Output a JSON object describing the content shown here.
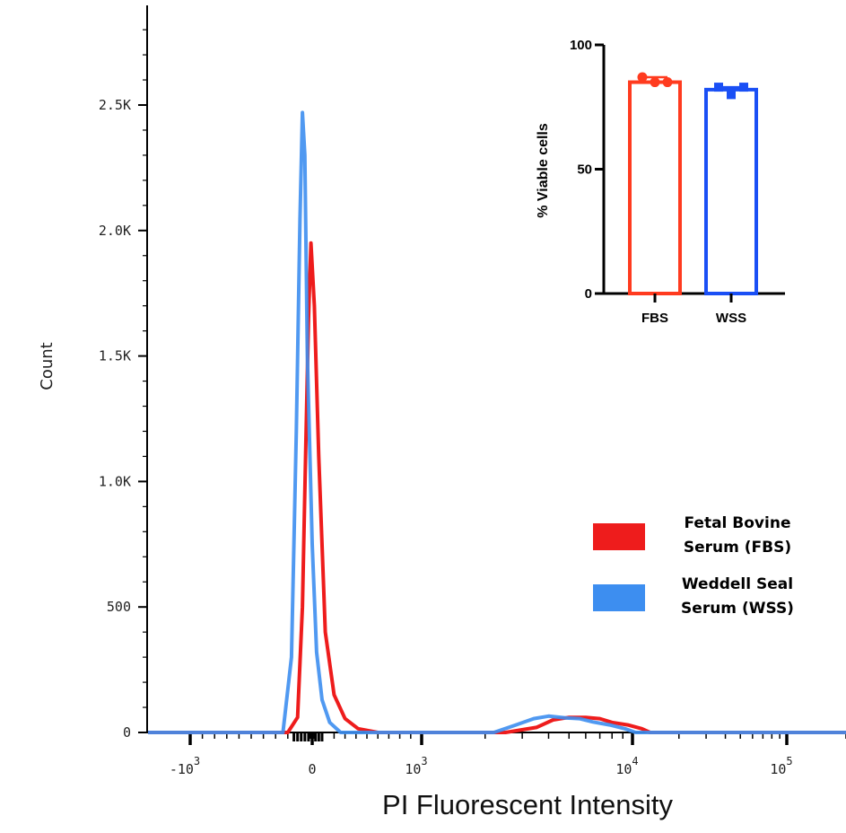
{
  "colors": {
    "fbs": "#ee1c1c",
    "wss": "#3d8ef0",
    "inset_fbs": "#ff3b1f",
    "inset_wss": "#1a4ff5",
    "axis": "#000000"
  },
  "chart_data": [
    {
      "type": "line",
      "title": "",
      "xlabel": "PI Fluorescent Intensity",
      "ylabel": "Count",
      "x_scale": "biexponential",
      "xlim": [
        -2000,
        200000
      ],
      "ylim": [
        0,
        2850
      ],
      "x_ticks": [
        {
          "value": -1000,
          "base": "-10",
          "exp": "3"
        },
        {
          "value": 0,
          "base": "0",
          "exp": ""
        },
        {
          "value": 1000,
          "base": "10",
          "exp": "3"
        },
        {
          "value": 10000,
          "base": "10",
          "exp": "4"
        },
        {
          "value": 100000,
          "base": "10",
          "exp": "5"
        }
      ],
      "y_ticks": [
        {
          "value": 0,
          "label": "0"
        },
        {
          "value": 500,
          "label": "500"
        },
        {
          "value": 1000,
          "label": "1.0K"
        },
        {
          "value": 1500,
          "label": "1.5K"
        },
        {
          "value": 2000,
          "label": "2.0K"
        },
        {
          "value": 2500,
          "label": "2.5K"
        }
      ],
      "legend_position": "right",
      "series": [
        {
          "key": "fbs",
          "legend_line1": "Fetal Bovine",
          "legend_line2": "Serum (FBS)",
          "points": [
            [
              -2000,
              0
            ],
            [
              -200,
              0
            ],
            [
              -120,
              60
            ],
            [
              -80,
              500
            ],
            [
              -50,
              1200
            ],
            [
              -30,
              1650
            ],
            [
              -10,
              1950
            ],
            [
              20,
              1700
            ],
            [
              60,
              1100
            ],
            [
              120,
              400
            ],
            [
              200,
              150
            ],
            [
              300,
              55
            ],
            [
              420,
              15
            ],
            [
              600,
              0
            ],
            [
              2500,
              0
            ],
            [
              3500,
              20
            ],
            [
              4200,
              50
            ],
            [
              5000,
              60
            ],
            [
              6000,
              60
            ],
            [
              7000,
              55
            ],
            [
              8000,
              40
            ],
            [
              9500,
              30
            ],
            [
              11500,
              15
            ],
            [
              13000,
              0
            ],
            [
              200000,
              0
            ]
          ]
        },
        {
          "key": "wss",
          "legend_line1": "Weddell Seal",
          "legend_line2": "Serum (WSS)",
          "points": [
            [
              -2000,
              0
            ],
            [
              -240,
              0
            ],
            [
              -170,
              300
            ],
            [
              -130,
              1200
            ],
            [
              -100,
              2050
            ],
            [
              -80,
              2470
            ],
            [
              -60,
              2300
            ],
            [
              -40,
              1500
            ],
            [
              0,
              750
            ],
            [
              40,
              320
            ],
            [
              90,
              130
            ],
            [
              160,
              40
            ],
            [
              260,
              0
            ],
            [
              2200,
              0
            ],
            [
              2800,
              30
            ],
            [
              3400,
              55
            ],
            [
              4000,
              65
            ],
            [
              4800,
              58
            ],
            [
              5600,
              55
            ],
            [
              6500,
              42
            ],
            [
              7800,
              30
            ],
            [
              9200,
              15
            ],
            [
              10500,
              0
            ],
            [
              200000,
              0
            ]
          ]
        }
      ]
    },
    {
      "type": "bar",
      "title": "",
      "xlabel": "",
      "ylabel": "% Viable cells",
      "ylim": [
        0,
        100
      ],
      "y_ticks": [
        0,
        50,
        100
      ],
      "categories": [
        "FBS",
        "WSS"
      ],
      "values": [
        85,
        82
      ],
      "replicates": [
        [
          87,
          85,
          85
        ],
        [
          83,
          80,
          83
        ]
      ]
    }
  ]
}
